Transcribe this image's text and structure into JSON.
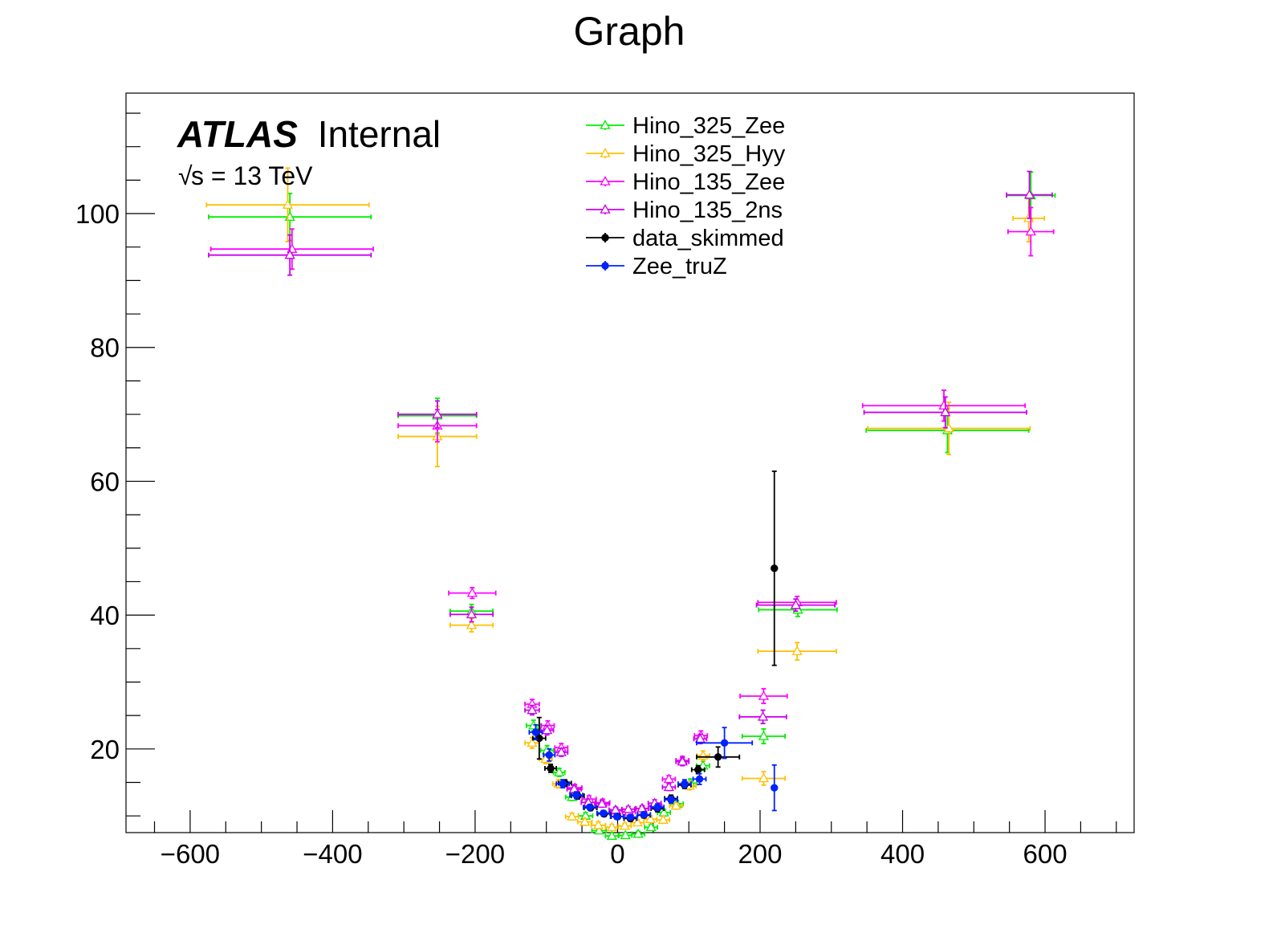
{
  "chart_data": {
    "type": "scatter",
    "title": "Graph",
    "xlabel": "",
    "ylabel": "",
    "xlim": [
      -690,
      725
    ],
    "ylim": [
      7.5,
      118
    ],
    "xticks": [
      -600,
      -400,
      -200,
      0,
      200,
      400,
      600
    ],
    "xtick_labels": [
      "−600",
      "−400",
      "−200",
      "0",
      "200",
      "400",
      "600"
    ],
    "xminor_step": 50,
    "yticks": [
      20,
      40,
      60,
      80,
      100
    ],
    "ytick_labels": [
      "20",
      "40",
      "60",
      "80",
      "100"
    ],
    "yminor_step": 5,
    "grid": false,
    "legend_position": "top-center",
    "annotations": {
      "experiment": "ATLAS",
      "status": "Internal",
      "energy": "s = 13 TeV",
      "sqrt_symbol": "√"
    },
    "series": [
      {
        "name": "Hino_325_Zee",
        "color": "#00ee00",
        "marker": "open-triangle",
        "points": [
          [
            -460,
            99.5,
            114,
            3.5
          ],
          [
            -253,
            69.8,
            55,
            2.6
          ],
          [
            -205,
            40.6,
            30,
            1.0
          ],
          [
            -118,
            23.5,
            10,
            0.8
          ],
          [
            -99,
            19.8,
            9,
            0.7
          ],
          [
            -82,
            16.5,
            8,
            0.6
          ],
          [
            -64,
            12.8,
            9,
            0.5
          ],
          [
            -45,
            10.0,
            10,
            0.5
          ],
          [
            -26,
            7.8,
            10,
            0.4
          ],
          [
            -8,
            7.0,
            9,
            0.4
          ],
          [
            11,
            7.1,
            9,
            0.4
          ],
          [
            29,
            7.3,
            9,
            0.4
          ],
          [
            47,
            8.3,
            9,
            0.4
          ],
          [
            65,
            10.5,
            9,
            0.5
          ],
          [
            83,
            11.8,
            9,
            0.5
          ],
          [
            102,
            14.9,
            9,
            0.6
          ],
          [
            120,
            17.5,
            9,
            0.7
          ],
          [
            205,
            21.9,
            30,
            1.1
          ],
          [
            253,
            40.8,
            55,
            1.0
          ],
          [
            463,
            67.6,
            114,
            3.3
          ],
          [
            580,
            102.7,
            34,
            3.5
          ]
        ]
      },
      {
        "name": "Hino_325_Hyy",
        "color": "#ffc000",
        "marker": "open-triangle",
        "points": [
          [
            -463,
            101.3,
            114,
            5.5
          ],
          [
            -253,
            66.7,
            55,
            4.5
          ],
          [
            -205,
            38.5,
            30,
            1.0
          ],
          [
            -120,
            20.9,
            10,
            0.8
          ],
          [
            -101,
            18.5,
            9,
            0.7
          ],
          [
            -83,
            14.8,
            8,
            0.6
          ],
          [
            -64,
            9.9,
            9,
            0.5
          ],
          [
            -46,
            9.1,
            10,
            0.5
          ],
          [
            -27,
            8.6,
            10,
            0.5
          ],
          [
            -8,
            8.3,
            9,
            0.4
          ],
          [
            10,
            8.5,
            9,
            0.4
          ],
          [
            28,
            9.0,
            9,
            0.4
          ],
          [
            46,
            9.5,
            9,
            0.5
          ],
          [
            64,
            9.4,
            9,
            0.5
          ],
          [
            82,
            11.5,
            9,
            0.5
          ],
          [
            101,
            14.5,
            9,
            0.6
          ],
          [
            120,
            19.0,
            9,
            0.7
          ],
          [
            205,
            15.6,
            30,
            1.0
          ],
          [
            252,
            34.6,
            55,
            1.3
          ],
          [
            465,
            67.9,
            114,
            3.9
          ],
          [
            577,
            99.3,
            22,
            3.5
          ]
        ]
      },
      {
        "name": "Hino_135_Zee",
        "color": "#ff00ff",
        "marker": "open-triangle",
        "points": [
          [
            -457,
            94.7,
            114,
            3.0
          ],
          [
            -253,
            68.3,
            55,
            2.4
          ],
          [
            -204,
            43.3,
            33,
            0.8
          ],
          [
            -120,
            26.7,
            10,
            0.7
          ],
          [
            -98,
            23.5,
            9,
            0.7
          ],
          [
            -79,
            20.2,
            9,
            0.6
          ],
          [
            -60,
            14.2,
            10,
            0.5
          ],
          [
            -40,
            12.5,
            10,
            0.5
          ],
          [
            -21,
            12.0,
            10,
            0.5
          ],
          [
            -2,
            10.8,
            9,
            0.4
          ],
          [
            16,
            10.6,
            9,
            0.4
          ],
          [
            35,
            11.1,
            9,
            0.4
          ],
          [
            53,
            11.5,
            9,
            0.5
          ],
          [
            72,
            15.5,
            9,
            0.5
          ],
          [
            91,
            18.3,
            9,
            0.6
          ],
          [
            117,
            22.0,
            9,
            0.7
          ],
          [
            205,
            27.9,
            33,
            1.1
          ],
          [
            252,
            41.9,
            55,
            0.9
          ],
          [
            458,
            71.3,
            114,
            2.3
          ],
          [
            580,
            97.3,
            32,
            3.6
          ]
        ]
      },
      {
        "name": "Hino_135_2ns",
        "color": "#cc00ee",
        "marker": "open-triangle",
        "points": [
          [
            -460,
            93.8,
            114,
            3.0
          ],
          [
            -253,
            70.0,
            55,
            2.0
          ],
          [
            -205,
            40.1,
            30,
            1.1
          ],
          [
            -120,
            25.8,
            10,
            0.7
          ],
          [
            -99,
            22.8,
            9,
            0.7
          ],
          [
            -79,
            19.5,
            9,
            0.6
          ],
          [
            -61,
            14.0,
            10,
            0.5
          ],
          [
            -41,
            12.0,
            10,
            0.5
          ],
          [
            -22,
            11.8,
            10,
            0.5
          ],
          [
            -3,
            10.9,
            9,
            0.4
          ],
          [
            15,
            11.0,
            9,
            0.4
          ],
          [
            34,
            11.1,
            9,
            0.4
          ],
          [
            52,
            11.9,
            9,
            0.5
          ],
          [
            72,
            14.3,
            9,
            0.5
          ],
          [
            91,
            18.1,
            9,
            0.6
          ],
          [
            116,
            21.5,
            9,
            0.7
          ],
          [
            204,
            24.8,
            33,
            1.0
          ],
          [
            250,
            41.5,
            55,
            0.9
          ],
          [
            460,
            70.3,
            114,
            2.3
          ],
          [
            578,
            102.8,
            32,
            3.5
          ]
        ]
      },
      {
        "name": "data_skimmed",
        "color": "#000000",
        "marker": "filled-circle",
        "points": [
          [
            -110,
            21.6,
            9,
            3.1
          ],
          [
            -94,
            17.1,
            8,
            0.6
          ],
          [
            -74,
            14.9,
            9,
            0.5
          ],
          [
            -56,
            13.0,
            9,
            0.5
          ],
          [
            -38,
            11.2,
            9,
            0.4
          ],
          [
            -19,
            10.3,
            9,
            0.4
          ],
          [
            0,
            9.9,
            9,
            0.4
          ],
          [
            18,
            9.6,
            9,
            0.4
          ],
          [
            37,
            10.1,
            9,
            0.4
          ],
          [
            56,
            11.1,
            9,
            0.5
          ],
          [
            75,
            12.6,
            9,
            0.5
          ],
          [
            94,
            14.6,
            9,
            0.5
          ],
          [
            113,
            16.9,
            9,
            0.6
          ],
          [
            141,
            18.8,
            30,
            1.5
          ],
          [
            220,
            47.0,
            1,
            14.5
          ]
        ]
      },
      {
        "name": "Zee_truZ",
        "color": "#0022ff",
        "marker": "filled-circle",
        "points": [
          [
            -115,
            22.5,
            9,
            1.1
          ],
          [
            -96,
            19.1,
            8,
            0.9
          ],
          [
            -77,
            14.8,
            9,
            0.6
          ],
          [
            -58,
            13.1,
            9,
            0.5
          ],
          [
            -39,
            11.3,
            9,
            0.4
          ],
          [
            -20,
            10.4,
            9,
            0.4
          ],
          [
            -1,
            9.9,
            9,
            0.4
          ],
          [
            18,
            9.8,
            9,
            0.4
          ],
          [
            37,
            10.2,
            9,
            0.4
          ],
          [
            56,
            11.3,
            9,
            0.5
          ],
          [
            75,
            12.4,
            9,
            0.5
          ],
          [
            94,
            14.8,
            9,
            0.6
          ],
          [
            115,
            15.5,
            9,
            0.8
          ],
          [
            150,
            20.9,
            39,
            2.3
          ],
          [
            220,
            14.2,
            1,
            3.4
          ]
        ]
      }
    ]
  }
}
